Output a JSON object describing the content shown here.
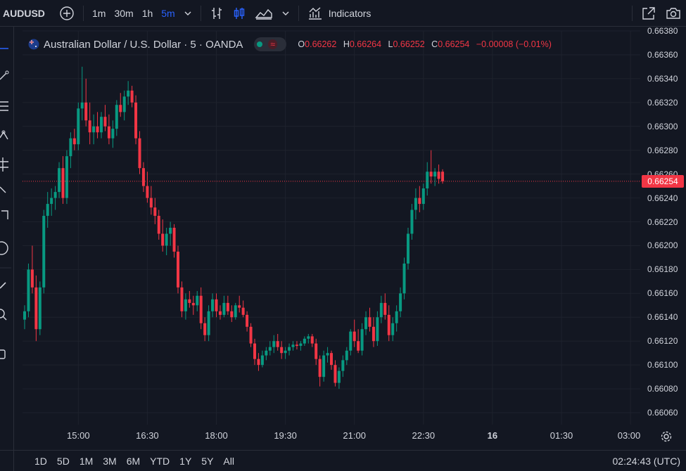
{
  "toolbar": {
    "symbol": "AUDUSD",
    "intervals": [
      "1m",
      "30m",
      "1h",
      "5m"
    ],
    "active_interval": "5m",
    "indicators_label": "Indicators"
  },
  "legend": {
    "title": "Australian Dollar / U.S. Dollar · 5 · OANDA",
    "o_label": "O",
    "o_value": "0.66262",
    "h_label": "H",
    "h_value": "0.66264",
    "l_label": "L",
    "l_value": "0.66252",
    "c_label": "C",
    "c_value": "0.66254",
    "change": "−0.00008 (−0.01%)"
  },
  "current_price": "0.66254",
  "bottom": {
    "ranges": [
      "1D",
      "5D",
      "1M",
      "3M",
      "6M",
      "YTD",
      "1Y",
      "5Y",
      "All"
    ],
    "clock": "02:24:43 (UTC)"
  },
  "colors": {
    "up": "#089981",
    "down": "#f23645",
    "background": "#131722",
    "grid": "#1e222d"
  },
  "chart_data": {
    "type": "candlestick",
    "ylim": [
      0.6605,
      0.6638
    ],
    "yticks": [
      "0.66060",
      "0.66080",
      "0.66100",
      "0.66120",
      "0.66140",
      "0.66160",
      "0.66180",
      "0.66200",
      "0.66220",
      "0.66240",
      "0.66260",
      "0.66280",
      "0.66300",
      "0.66320",
      "0.66340",
      "0.66360",
      "0.66380"
    ],
    "xticks": [
      {
        "label": "15:00",
        "index": 14
      },
      {
        "label": "16:30",
        "index": 32
      },
      {
        "label": "18:00",
        "index": 50
      },
      {
        "label": "19:30",
        "index": 68
      },
      {
        "label": "21:00",
        "index": 86
      },
      {
        "label": "22:30",
        "index": 104
      },
      {
        "label": "16",
        "index": 122,
        "bold": true
      },
      {
        "label": "01:30",
        "index": 140
      },
      {
        "label": "03:00",
        "index": 158
      }
    ],
    "candles": [
      [
        0.66138,
        0.6615,
        0.6613,
        0.66145
      ],
      [
        0.66145,
        0.66185,
        0.6614,
        0.6618
      ],
      [
        0.6618,
        0.662,
        0.6616,
        0.66165
      ],
      [
        0.66165,
        0.66175,
        0.6612,
        0.6613
      ],
      [
        0.6613,
        0.6617,
        0.66125,
        0.66165
      ],
      [
        0.66165,
        0.6623,
        0.6616,
        0.66225
      ],
      [
        0.66225,
        0.66245,
        0.66215,
        0.66235
      ],
      [
        0.66235,
        0.66248,
        0.66225,
        0.6624
      ],
      [
        0.6624,
        0.6625,
        0.6623,
        0.66245
      ],
      [
        0.66245,
        0.6627,
        0.6624,
        0.66265
      ],
      [
        0.66265,
        0.66275,
        0.66235,
        0.6624
      ],
      [
        0.6624,
        0.6628,
        0.66235,
        0.66275
      ],
      [
        0.66275,
        0.66295,
        0.66265,
        0.6629
      ],
      [
        0.6629,
        0.66298,
        0.6628,
        0.66285
      ],
      [
        0.66285,
        0.6632,
        0.6628,
        0.66315
      ],
      [
        0.66315,
        0.6635,
        0.66305,
        0.6632
      ],
      [
        0.6632,
        0.6634,
        0.663,
        0.66305
      ],
      [
        0.66305,
        0.6632,
        0.66285,
        0.66295
      ],
      [
        0.66295,
        0.6631,
        0.66285,
        0.663
      ],
      [
        0.663,
        0.66312,
        0.6629,
        0.66295
      ],
      [
        0.66295,
        0.66312,
        0.6629,
        0.66308
      ],
      [
        0.66308,
        0.66318,
        0.66296,
        0.663
      ],
      [
        0.663,
        0.6631,
        0.66285,
        0.6629
      ],
      [
        0.6629,
        0.66305,
        0.66282,
        0.66298
      ],
      [
        0.66298,
        0.66322,
        0.66292,
        0.66318
      ],
      [
        0.66318,
        0.66328,
        0.66308,
        0.66312
      ],
      [
        0.66312,
        0.6633,
        0.66305,
        0.66325
      ],
      [
        0.66325,
        0.66338,
        0.66318,
        0.6633
      ],
      [
        0.6633,
        0.66334,
        0.66316,
        0.6632
      ],
      [
        0.6632,
        0.66326,
        0.66285,
        0.6629
      ],
      [
        0.6629,
        0.66296,
        0.6626,
        0.66265
      ],
      [
        0.66265,
        0.6627,
        0.66245,
        0.6625
      ],
      [
        0.6625,
        0.66262,
        0.66236,
        0.6624
      ],
      [
        0.6624,
        0.6625,
        0.66226,
        0.66232
      ],
      [
        0.66232,
        0.6624,
        0.66218,
        0.66225
      ],
      [
        0.66225,
        0.6623,
        0.66205,
        0.6621
      ],
      [
        0.6621,
        0.66222,
        0.66195,
        0.662
      ],
      [
        0.662,
        0.66215,
        0.66192,
        0.6621
      ],
      [
        0.6621,
        0.6622,
        0.662,
        0.66215
      ],
      [
        0.66215,
        0.66218,
        0.6619,
        0.66195
      ],
      [
        0.66195,
        0.662,
        0.6616,
        0.66165
      ],
      [
        0.66165,
        0.6617,
        0.6614,
        0.66145
      ],
      [
        0.66145,
        0.6616,
        0.66138,
        0.66155
      ],
      [
        0.66155,
        0.66162,
        0.66148,
        0.66152
      ],
      [
        0.66152,
        0.66158,
        0.66142,
        0.6615
      ],
      [
        0.6615,
        0.66162,
        0.66145,
        0.66158
      ],
      [
        0.66158,
        0.66165,
        0.6613,
        0.66135
      ],
      [
        0.66135,
        0.6614,
        0.6612,
        0.66125
      ],
      [
        0.66125,
        0.6615,
        0.6612,
        0.66145
      ],
      [
        0.66145,
        0.6616,
        0.6614,
        0.66155
      ],
      [
        0.66155,
        0.6616,
        0.6614,
        0.66145
      ],
      [
        0.66145,
        0.6615,
        0.66138,
        0.66142
      ],
      [
        0.66142,
        0.66158,
        0.6614,
        0.66152
      ],
      [
        0.66152,
        0.66158,
        0.66142,
        0.66145
      ],
      [
        0.66145,
        0.6615,
        0.66136,
        0.6614
      ],
      [
        0.6614,
        0.66152,
        0.66138,
        0.6615
      ],
      [
        0.6615,
        0.66158,
        0.66144,
        0.66148
      ],
      [
        0.66148,
        0.66154,
        0.6614,
        0.66142
      ],
      [
        0.66142,
        0.66145,
        0.66128,
        0.66132
      ],
      [
        0.66132,
        0.66135,
        0.66115,
        0.66118
      ],
      [
        0.66118,
        0.66122,
        0.661,
        0.66105
      ],
      [
        0.66105,
        0.6611,
        0.66095,
        0.661
      ],
      [
        0.661,
        0.66112,
        0.66098,
        0.66108
      ],
      [
        0.66108,
        0.66115,
        0.66104,
        0.66112
      ],
      [
        0.66112,
        0.6612,
        0.66108,
        0.66115
      ],
      [
        0.66115,
        0.66125,
        0.6611,
        0.6612
      ],
      [
        0.6612,
        0.66126,
        0.66112,
        0.66115
      ],
      [
        0.66115,
        0.6612,
        0.66105,
        0.6611
      ],
      [
        0.6611,
        0.66115,
        0.66105,
        0.66112
      ],
      [
        0.66112,
        0.66118,
        0.66108,
        0.66115
      ],
      [
        0.66115,
        0.6612,
        0.66112,
        0.66117
      ],
      [
        0.66117,
        0.6612,
        0.66113,
        0.66116
      ],
      [
        0.66116,
        0.6612,
        0.66112,
        0.66118
      ],
      [
        0.66118,
        0.66124,
        0.66116,
        0.66122
      ],
      [
        0.66122,
        0.66126,
        0.66118,
        0.66124
      ],
      [
        0.66124,
        0.66126,
        0.66115,
        0.66118
      ],
      [
        0.66118,
        0.66122,
        0.661,
        0.66105
      ],
      [
        0.66105,
        0.66108,
        0.66082,
        0.6609
      ],
      [
        0.6609,
        0.66112,
        0.66086,
        0.66108
      ],
      [
        0.66108,
        0.66115,
        0.66102,
        0.6611
      ],
      [
        0.6611,
        0.66112,
        0.66096,
        0.661
      ],
      [
        0.661,
        0.66104,
        0.66082,
        0.66085
      ],
      [
        0.66085,
        0.66098,
        0.6608,
        0.66095
      ],
      [
        0.66095,
        0.66108,
        0.6609,
        0.66104
      ],
      [
        0.66104,
        0.66115,
        0.661,
        0.66112
      ],
      [
        0.66112,
        0.6613,
        0.66108,
        0.66128
      ],
      [
        0.66128,
        0.66138,
        0.66115,
        0.6612
      ],
      [
        0.6612,
        0.6613,
        0.6611,
        0.66112
      ],
      [
        0.66112,
        0.66135,
        0.66108,
        0.6613
      ],
      [
        0.6613,
        0.66145,
        0.66125,
        0.6614
      ],
      [
        0.6614,
        0.66148,
        0.66128,
        0.66132
      ],
      [
        0.66132,
        0.6614,
        0.66115,
        0.6612
      ],
      [
        0.6612,
        0.66145,
        0.66116,
        0.6614
      ],
      [
        0.6614,
        0.66158,
        0.66135,
        0.66152
      ],
      [
        0.66152,
        0.6616,
        0.66138,
        0.66142
      ],
      [
        0.66142,
        0.6615,
        0.6612,
        0.66125
      ],
      [
        0.66125,
        0.6614,
        0.6612,
        0.66135
      ],
      [
        0.66135,
        0.6615,
        0.66128,
        0.66145
      ],
      [
        0.66145,
        0.66165,
        0.6614,
        0.6616
      ],
      [
        0.6616,
        0.6619,
        0.66155,
        0.66185
      ],
      [
        0.66185,
        0.66215,
        0.6618,
        0.6621
      ],
      [
        0.6621,
        0.66235,
        0.66205,
        0.6623
      ],
      [
        0.6623,
        0.66248,
        0.66222,
        0.6624
      ],
      [
        0.6624,
        0.6625,
        0.66228,
        0.66235
      ],
      [
        0.66235,
        0.66252,
        0.6623,
        0.66248
      ],
      [
        0.66248,
        0.6627,
        0.66242,
        0.66262
      ],
      [
        0.66262,
        0.6628,
        0.66252,
        0.66258
      ],
      [
        0.66258,
        0.66265,
        0.6625,
        0.66262
      ],
      [
        0.66262,
        0.66268,
        0.66252,
        0.66256
      ],
      [
        0.66262,
        0.66264,
        0.66252,
        0.66254
      ]
    ]
  }
}
